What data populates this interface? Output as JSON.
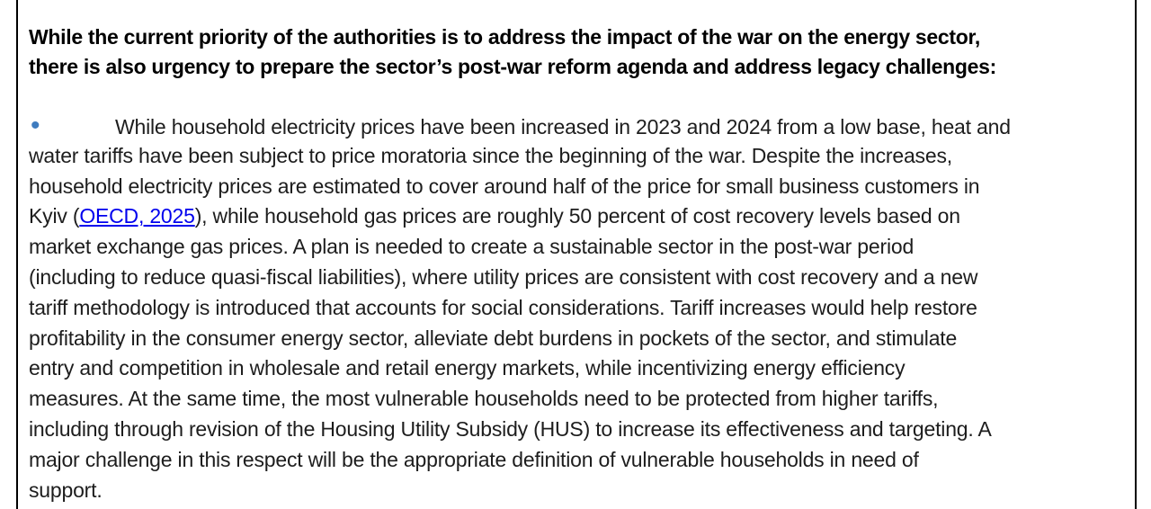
{
  "colors": {
    "background": "#ffffff",
    "border": "#000000",
    "heading_text": "#000000",
    "body_text": "#1d1d1d",
    "bullet": "#3e7cbf",
    "link": "#0000ee"
  },
  "heading": {
    "line1": "While the current priority of the authorities is to address the impact of the war on the energy sector,",
    "line2": "there is also urgency to prepare the sector’s post-war reform agenda and address legacy challenges:"
  },
  "bullet_item": {
    "bullet_glyph": "•",
    "lines": [
      {
        "text": "While household electricity prices have been increased in 2023 and 2024 from a low base, heat and"
      },
      {
        "text": "water tariffs have been subject to price moratoria since the beginning of the war. Despite the increases,"
      },
      {
        "text": "household electricity prices are estimated to cover around half of the price for small business customers in"
      },
      {
        "pre": "Kyiv (",
        "link": "OECD, 2025",
        "post": "), while household gas prices are roughly 50 percent of cost recovery levels based on"
      },
      {
        "text": "market exchange gas prices. A plan is needed to create a sustainable sector in the post-war period"
      },
      {
        "text": "(including to reduce quasi-fiscal liabilities), where utility prices are consistent with cost recovery and a new"
      },
      {
        "text": "tariff methodology is introduced that accounts for social considerations. Tariff increases would help restore"
      },
      {
        "text": "profitability in the consumer energy sector, alleviate debt burdens in pockets of the sector, and stimulate"
      },
      {
        "text": "entry and competition in wholesale and retail energy markets, while incentivizing energy efficiency"
      },
      {
        "text": "measures. At the same time, the most vulnerable households need to be protected from higher tariffs,"
      },
      {
        "text": "including through revision of the Housing Utility Subsidy (HUS) to increase its effectiveness and targeting. A"
      },
      {
        "text": "major challenge in this respect will be the appropriate definition of vulnerable households in need of"
      },
      {
        "text": "support."
      }
    ]
  }
}
